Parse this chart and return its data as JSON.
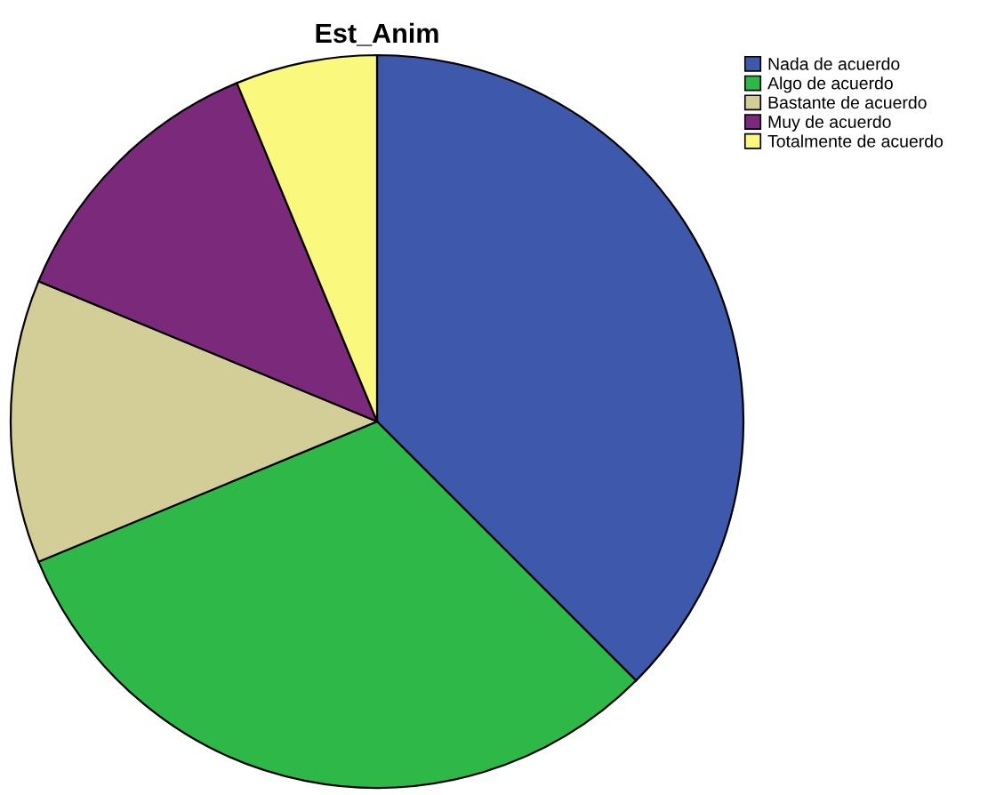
{
  "chart_data": {
    "type": "pie",
    "title": "Est_Anim",
    "categories": [
      "Nada de acuerdo",
      "Algo de acuerdo",
      "Bastante de acuerdo",
      "Muy de acuerdo",
      "Totalmente de acuerdo"
    ],
    "values": [
      37.5,
      31.25,
      12.5,
      12.5,
      6.25
    ],
    "colors": [
      "#3e58ac",
      "#2eb847",
      "#d3ce97",
      "#7b2a7b",
      "#fbf87e"
    ],
    "legend": "top right"
  }
}
